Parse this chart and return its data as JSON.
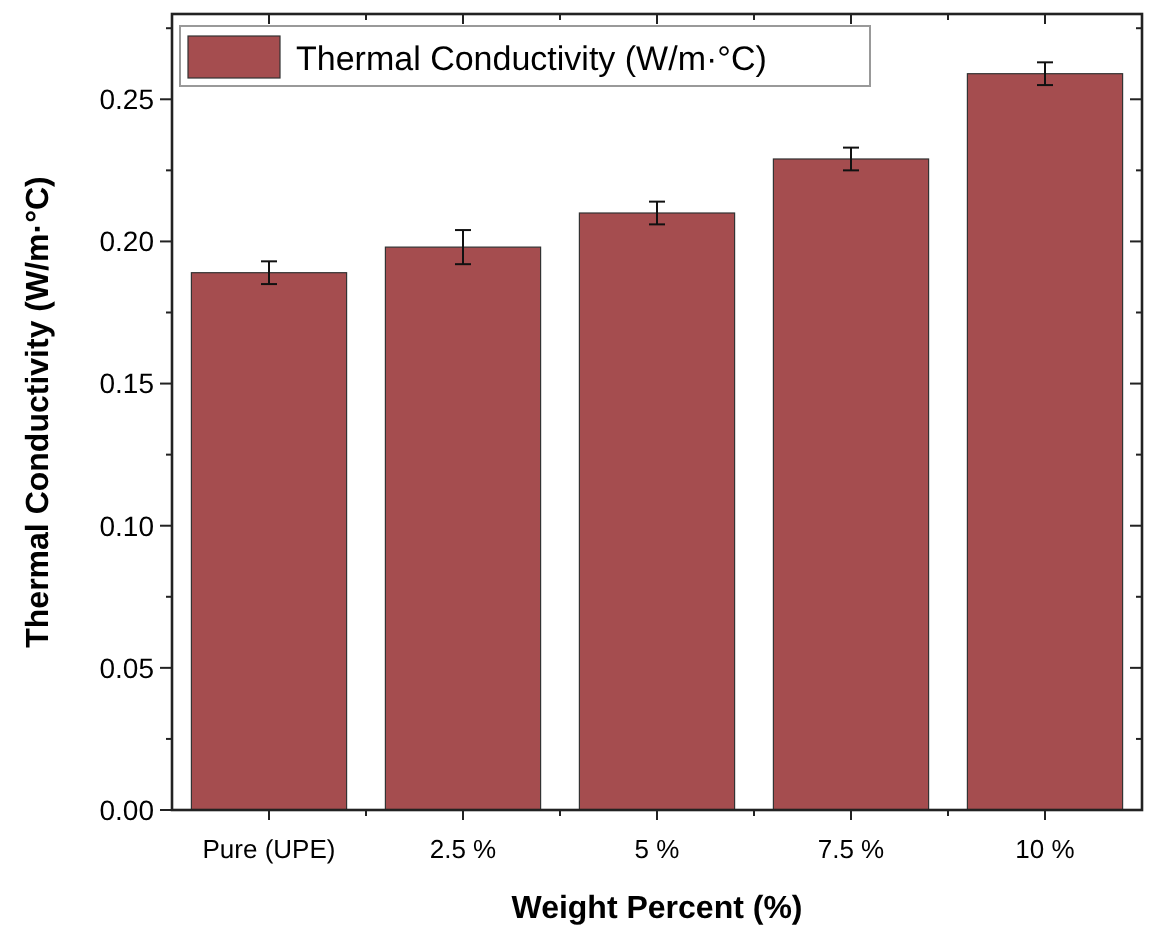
{
  "chart_data": {
    "type": "bar",
    "xlabel": "Weight Percent (%)",
    "ylabel": "Thermal Conductivity (W/m·°C)",
    "categories": [
      "Pure (UPE)",
      "2.5 %",
      "5 %",
      "7.5 %",
      "10 %"
    ],
    "series": [
      {
        "name": "Thermal Conductivity (W/m·°C)",
        "color": "#a54d4f",
        "values": [
          0.189,
          0.198,
          0.21,
          0.229,
          0.259
        ],
        "errors": [
          0.004,
          0.006,
          0.004,
          0.004,
          0.004
        ]
      }
    ],
    "ylim": [
      0,
      0.28
    ],
    "yticks": [
      "0.00",
      {
        "value": 0.025,
        "label": null
      },
      {
        "value": 0.05,
        "label": "0.05"
      },
      {
        "value": 0.075,
        "label": null
      },
      {
        "value": 0.1,
        "label": "0.10"
      },
      {
        "value": 0.125,
        "label": null
      },
      {
        "value": 0.15,
        "label": "0.15"
      },
      {
        "value": 0.175,
        "label": null
      },
      {
        "value": 0.2,
        "label": "0.20"
      },
      {
        "value": 0.225,
        "label": null
      },
      {
        "value": 0.25,
        "label": "0.25"
      },
      {
        "value": 0.275,
        "label": null
      }
    ],
    "legend": "top left",
    "grid": false
  }
}
